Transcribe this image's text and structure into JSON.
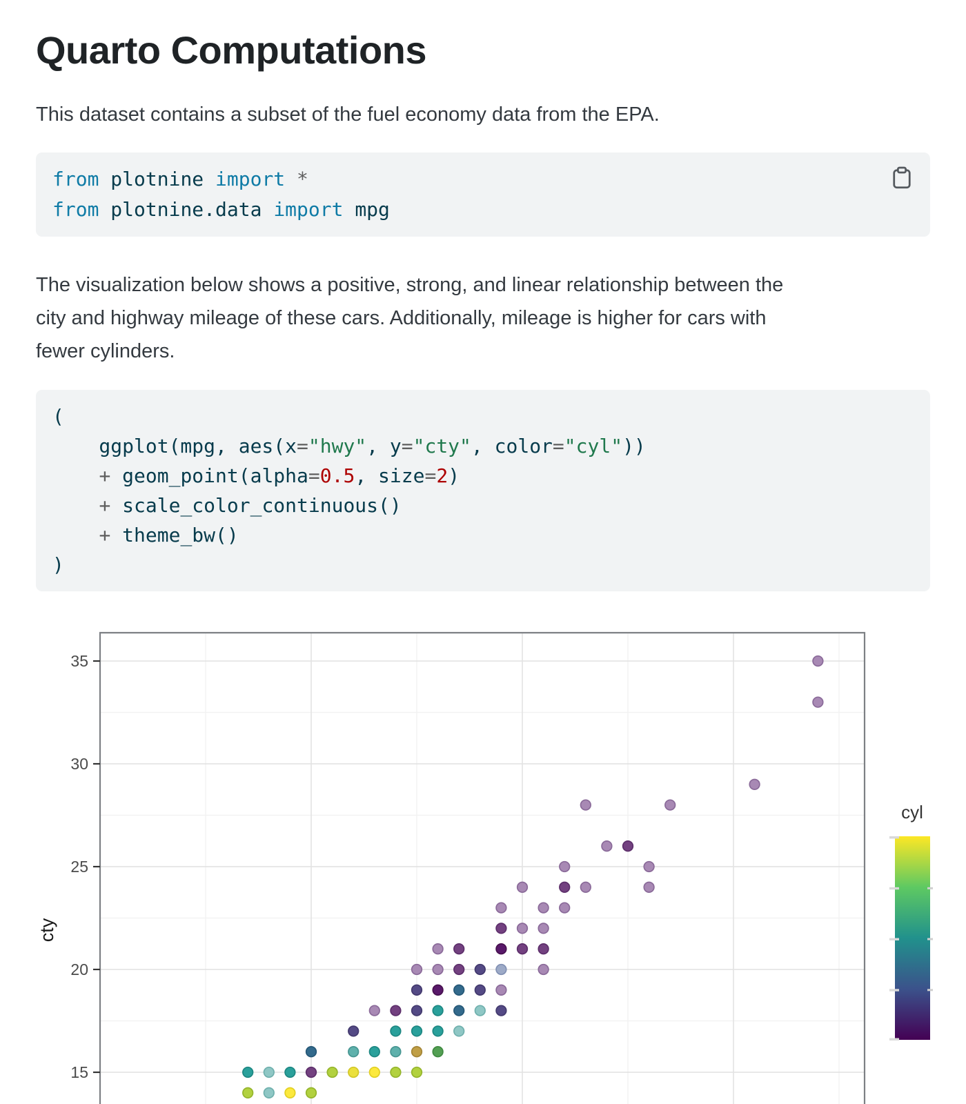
{
  "header": {
    "title": "Quarto Computations"
  },
  "paragraphs": {
    "intro": "This dataset contains a subset of the fuel economy data from the EPA.",
    "body_lines": [
      "The visualization below shows a positive, strong, and linear relationship between the",
      "city and highway mileage of these cars. Additionally, mileage is higher for cars with",
      "fewer cylinders."
    ]
  },
  "code_blocks": [
    {
      "copy_icon": "clipboard-icon",
      "lines": [
        [
          [
            "kw",
            "from"
          ],
          [
            "id",
            " plotnine "
          ],
          [
            "kw",
            "import"
          ],
          [
            "op",
            " *"
          ]
        ],
        [
          [
            "kw",
            "from"
          ],
          [
            "id",
            " plotnine.data "
          ],
          [
            "kw",
            "import"
          ],
          [
            "id",
            " mpg"
          ]
        ]
      ]
    },
    {
      "lines": [
        [
          [
            "id",
            "("
          ]
        ],
        [
          [
            "id",
            "    ggplot(mpg, aes(x"
          ],
          [
            "op",
            "="
          ],
          [
            "str",
            "\"hwy\""
          ],
          [
            "id",
            ", y"
          ],
          [
            "op",
            "="
          ],
          [
            "str",
            "\"cty\""
          ],
          [
            "id",
            ", color"
          ],
          [
            "op",
            "="
          ],
          [
            "str",
            "\"cyl\""
          ],
          [
            "id",
            "))"
          ]
        ],
        [
          [
            "id",
            "    "
          ],
          [
            "op",
            "+"
          ],
          [
            "id",
            " geom_point(alpha"
          ],
          [
            "op",
            "="
          ],
          [
            "num",
            "0.5"
          ],
          [
            "id",
            ", size"
          ],
          [
            "op",
            "="
          ],
          [
            "num",
            "2"
          ],
          [
            "id",
            ")"
          ]
        ],
        [
          [
            "id",
            "    "
          ],
          [
            "op",
            "+"
          ],
          [
            "id",
            " scale_color_continuous()"
          ]
        ],
        [
          [
            "id",
            "    "
          ],
          [
            "op",
            "+"
          ],
          [
            "id",
            " theme_bw()"
          ]
        ],
        [
          [
            "id",
            ")"
          ]
        ]
      ]
    }
  ],
  "chart_data": {
    "type": "scatter",
    "x_field": "hwy",
    "y_field": "cty",
    "color_field": "cyl",
    "point_alpha": 0.5,
    "x_axis": {
      "label": "",
      "labels_visible": false,
      "major_gridlines": [
        20,
        30,
        40
      ],
      "minor_gridlines": [
        15,
        25,
        35,
        45
      ]
    },
    "y_axis": {
      "title": "cty",
      "major_ticks": [
        35,
        30,
        25,
        20,
        15
      ],
      "minor_gridlines": [
        32.5,
        27.5,
        22.5,
        17.5
      ]
    },
    "legend": {
      "title": "cyl",
      "type": "colorbar",
      "range": [
        4,
        8
      ],
      "gradient_top_to_bottom": [
        "#fde725",
        "#5ec962",
        "#21918c",
        "#3b528b",
        "#440154"
      ]
    },
    "palette": {
      "p1": {
        "fill": "#a889b4",
        "stroke": "#8a6a99",
        "cyl": 4
      },
      "p2": {
        "fill": "#734180",
        "stroke": "#5d2f6b",
        "cyl": 4
      },
      "p3": {
        "fill": "#59196a",
        "stroke": "#47104f",
        "cyl": 4
      },
      "v": {
        "fill": "#544a85",
        "stroke": "#433a6e",
        "cyl": 4
      },
      "b1": {
        "fill": "#9daac7",
        "stroke": "#8190b3",
        "cyl": 5
      },
      "tb": {
        "fill": "#336a8c",
        "stroke": "#265877",
        "cyl": 5
      },
      "t1": {
        "fill": "#8fc7c5",
        "stroke": "#6fb0ad",
        "cyl": 6
      },
      "t15": {
        "fill": "#5fb1ac",
        "stroke": "#479692",
        "cyl": 6
      },
      "t2": {
        "fill": "#2aa09b",
        "stroke": "#1d8782",
        "cyl": 6
      },
      "o": {
        "fill": "#c09f46",
        "stroke": "#a48536",
        "cyl": 7
      },
      "dg": {
        "fill": "#539f53",
        "stroke": "#408a41",
        "cyl": 7
      },
      "g": {
        "fill": "#b2d13f",
        "stroke": "#95b52c",
        "cyl": 7
      },
      "y1": {
        "fill": "#fce93d",
        "stroke": "#e2d023",
        "cyl": 8
      },
      "y2": {
        "fill": "#ebe03c",
        "stroke": "#d2c728",
        "cyl": 8
      }
    },
    "points": [
      [
        44,
        35,
        "p1"
      ],
      [
        44,
        33,
        "p1"
      ],
      [
        41,
        29,
        "p1"
      ],
      [
        33,
        28,
        "p1"
      ],
      [
        37,
        28,
        "p1"
      ],
      [
        34,
        26,
        "p1"
      ],
      [
        35,
        26,
        "p2"
      ],
      [
        32,
        25,
        "p1"
      ],
      [
        36,
        25,
        "p1"
      ],
      [
        30,
        24,
        "p1"
      ],
      [
        32,
        24,
        "p2"
      ],
      [
        33,
        24,
        "p1"
      ],
      [
        36,
        24,
        "p1"
      ],
      [
        29,
        23,
        "p1"
      ],
      [
        31,
        23,
        "p1"
      ],
      [
        32,
        23,
        "p1"
      ],
      [
        29,
        22,
        "p2"
      ],
      [
        30,
        22,
        "p1"
      ],
      [
        31,
        22,
        "p1"
      ],
      [
        26,
        21,
        "p1"
      ],
      [
        27,
        21,
        "p2"
      ],
      [
        29,
        21,
        "p3"
      ],
      [
        30,
        21,
        "p2"
      ],
      [
        31,
        21,
        "p2"
      ],
      [
        25,
        20,
        "p1"
      ],
      [
        26,
        20,
        "p1"
      ],
      [
        27,
        20,
        "p2"
      ],
      [
        28,
        20,
        "v"
      ],
      [
        29,
        20,
        "b1"
      ],
      [
        31,
        20,
        "p1"
      ],
      [
        25,
        19,
        "v"
      ],
      [
        26,
        19,
        "p3"
      ],
      [
        27,
        19,
        "tb"
      ],
      [
        28,
        19,
        "v"
      ],
      [
        29,
        19,
        "p1"
      ],
      [
        23,
        18,
        "p1"
      ],
      [
        24,
        18,
        "p2"
      ],
      [
        25,
        18,
        "v"
      ],
      [
        26,
        18,
        "t2"
      ],
      [
        27,
        18,
        "tb"
      ],
      [
        28,
        18,
        "t1"
      ],
      [
        29,
        18,
        "v"
      ],
      [
        22,
        17,
        "v"
      ],
      [
        24,
        17,
        "t2"
      ],
      [
        25,
        17,
        "t2"
      ],
      [
        26,
        17,
        "t2"
      ],
      [
        27,
        17,
        "t1"
      ],
      [
        20,
        16,
        "tb"
      ],
      [
        22,
        16,
        "t15"
      ],
      [
        23,
        16,
        "t2"
      ],
      [
        24,
        16,
        "t15"
      ],
      [
        25,
        16,
        "o"
      ],
      [
        26,
        16,
        "dg"
      ],
      [
        17,
        15,
        "t2"
      ],
      [
        18,
        15,
        "t1"
      ],
      [
        19,
        15,
        "t2"
      ],
      [
        20,
        15,
        "p2"
      ],
      [
        21,
        15,
        "g"
      ],
      [
        22,
        15,
        "y2"
      ],
      [
        23,
        15,
        "y1"
      ],
      [
        24,
        15,
        "g"
      ],
      [
        25,
        15,
        "g"
      ],
      [
        17,
        14,
        "g"
      ],
      [
        18,
        14,
        "t1"
      ],
      [
        19,
        14,
        "y1"
      ],
      [
        20,
        14,
        "g"
      ]
    ]
  }
}
